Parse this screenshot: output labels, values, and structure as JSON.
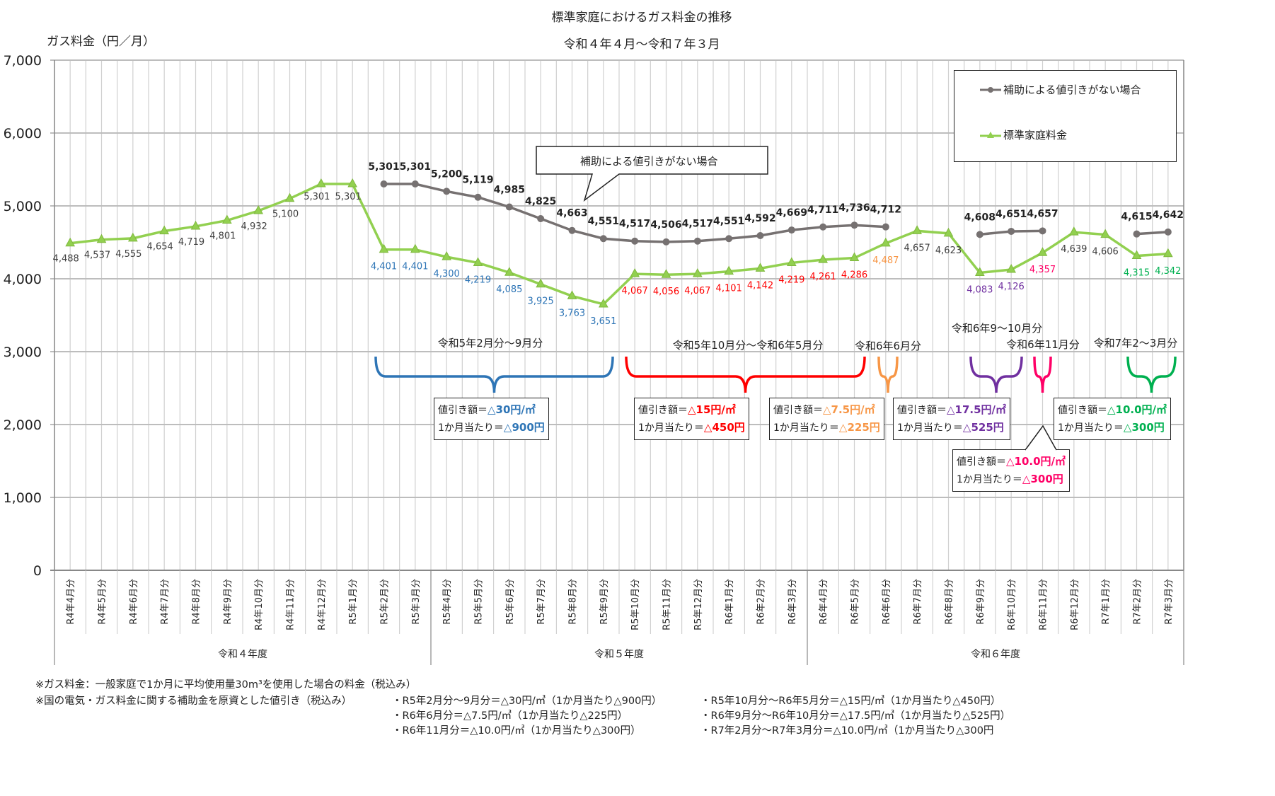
{
  "chart_data": {
    "type": "line",
    "title": "標準家庭におけるガス料金の推移",
    "subtitle": "令和４年４月～令和７年３月",
    "ylabel": "ガス料金（円／月）",
    "ylim": [
      0,
      7000
    ],
    "yticks": [
      0,
      1000,
      2000,
      3000,
      4000,
      5000,
      6000,
      7000
    ],
    "ytick_labels": [
      "0",
      "1,000",
      "2,000",
      "3,000",
      "4,000",
      "5,000",
      "6,000",
      "7,000"
    ],
    "grid": true,
    "legend_position": "top-right",
    "categories": [
      "R4年4月分",
      "R4年5月分",
      "R4年6月分",
      "R4年7月分",
      "R4年8月分",
      "R4年9月分",
      "R4年10月分",
      "R4年11月分",
      "R4年12月分",
      "R5年1月分",
      "R5年2月分",
      "R5年3月分",
      "R5年4月分",
      "R5年5月分",
      "R5年6月分",
      "R5年7月分",
      "R5年8月分",
      "R5年9月分",
      "R5年10月分",
      "R5年11月分",
      "R5年12月分",
      "R6年1月分",
      "R6年2月分",
      "R6年3月分",
      "R6年4月分",
      "R6年5月分",
      "R6年6月分",
      "R6年7月分",
      "R6年8月分",
      "R6年9月分",
      "R6年10月分",
      "R6年11月分",
      "R6年12月分",
      "R7年1月分",
      "R7年2月分",
      "R7年3月分"
    ],
    "fiscal_years": [
      "令和４年度",
      "令和５年度",
      "令和６年度"
    ],
    "series": [
      {
        "name": "補助による値引きがない場合",
        "color": "#767171",
        "marker": "circle",
        "values": [
          null,
          null,
          null,
          null,
          null,
          null,
          null,
          null,
          null,
          null,
          5301,
          5301,
          5200,
          5119,
          4985,
          4825,
          4663,
          4551,
          4517,
          4506,
          4517,
          4551,
          4592,
          4669,
          4711,
          4736,
          4712,
          null,
          null,
          4608,
          4651,
          4657,
          null,
          null,
          4615,
          4642
        ]
      },
      {
        "name": "標準家庭料金",
        "color": "#92d050",
        "marker": "triangle",
        "values": [
          4488,
          4537,
          4555,
          4654,
          4719,
          4801,
          4932,
          5100,
          5301,
          5301,
          4401,
          4401,
          4300,
          4219,
          4085,
          3925,
          3763,
          3651,
          4067,
          4056,
          4067,
          4101,
          4142,
          4219,
          4261,
          4286,
          4487,
          4657,
          4623,
          4083,
          4126,
          4357,
          4639,
          4606,
          4315,
          4342
        ]
      }
    ],
    "callout": "補助による値引きがない場合",
    "discount_periods": [
      {
        "label": "令和5年2月分～9月分",
        "from": 10,
        "to": 17,
        "color": "#2e75b6",
        "rate": "△30円/㎡",
        "monthly": "△900円"
      },
      {
        "label": "令和5年10月分～令和6年5月分",
        "from": 18,
        "to": 25,
        "color": "#ff0000",
        "rate": "△15円/㎡",
        "monthly": "△450円"
      },
      {
        "label": "令和6年6月分",
        "from": 26,
        "to": 26,
        "color": "#f79646",
        "rate": "△7.5円/㎡",
        "monthly": "△225円"
      },
      {
        "label": "令和6年9～10月分",
        "from": 29,
        "to": 30,
        "color": "#7030a0",
        "rate": "△17.5円/㎡",
        "monthly": "△525円"
      },
      {
        "label": "令和6年11月分",
        "from": 31,
        "to": 31,
        "color": "#ff0066",
        "rate": "△10.0円/㎡",
        "monthly": "△300円"
      },
      {
        "label": "令和7年2～3月分",
        "from": 34,
        "to": 35,
        "color": "#00b050",
        "rate": "△10.0円/㎡",
        "monthly": "△300円"
      }
    ],
    "box_prefix_rate": "値引き額＝",
    "box_prefix_monthly": "1か月当たり＝"
  },
  "footnotes": {
    "line1": "※ガス料金：一般家庭で1か月に平均使用量30m³を使用した場合の料金（税込み）",
    "line2": "※国の電気・ガス料金に関する補助金を原資とした値引き（税込み）",
    "items": [
      "・R5年2月分～9月分＝△30円/㎥（1か月当たり△900円）",
      "・R5年10月分～R6年5月分＝△15円/㎥（1か月当たり△450円）",
      "・R6年6月分＝△7.5円/㎥（1か月当たり△225円）",
      "・R6年9月分～R6年10月分＝△17.5円/㎥（1か月当たり△525円）",
      "・R6年11月分＝△10.0円/㎥（1か月当たり△300円）",
      "・R7年2月分～R7年3月分＝△10.0円/㎥（1か月当たり△300円"
    ]
  }
}
